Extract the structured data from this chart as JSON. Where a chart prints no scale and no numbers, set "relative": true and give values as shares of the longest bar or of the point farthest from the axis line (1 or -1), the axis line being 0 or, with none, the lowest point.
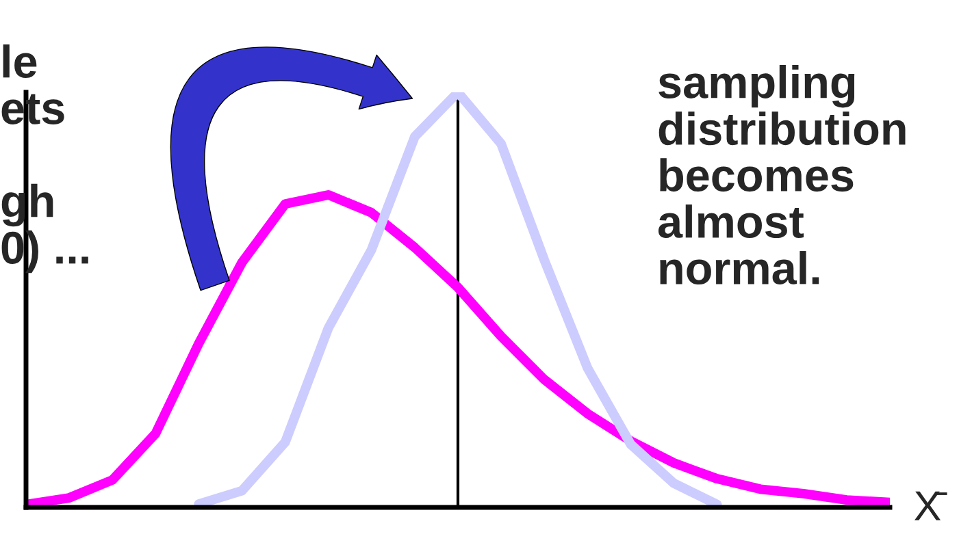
{
  "chart_data": {
    "type": "line",
    "relative": true,
    "xlabel": "X̄",
    "categories": [
      null,
      null,
      null,
      null,
      null,
      null,
      null,
      null,
      null,
      null,
      null,
      null,
      null,
      null,
      null,
      null,
      null,
      null,
      null,
      null,
      null
    ],
    "series": [
      {
        "color": "#ff00ff",
        "values": [
          0.007,
          0.023,
          0.066,
          0.178,
          0.395,
          0.59,
          0.731,
          0.753,
          0.71,
          0.626,
          0.53,
          0.412,
          0.308,
          0.226,
          0.16,
          0.107,
          0.069,
          0.044,
          0.033,
          0.018,
          0.012
        ]
      },
      {
        "color": "#ccccff",
        "values": [
          null,
          null,
          null,
          null,
          0.008,
          0.04,
          0.157,
          0.432,
          0.621,
          0.893,
          1.0,
          0.876,
          0.596,
          0.336,
          0.152,
          0.058,
          0.007,
          null,
          null,
          null,
          null
        ]
      }
    ],
    "annotations": [
      "sampling\ndistribution\nbecomes\nalmost\nnormal.",
      "le\nets\n\ngh\n0) ..."
    ],
    "grid": false,
    "legend": false,
    "line_style": "solid"
  }
}
